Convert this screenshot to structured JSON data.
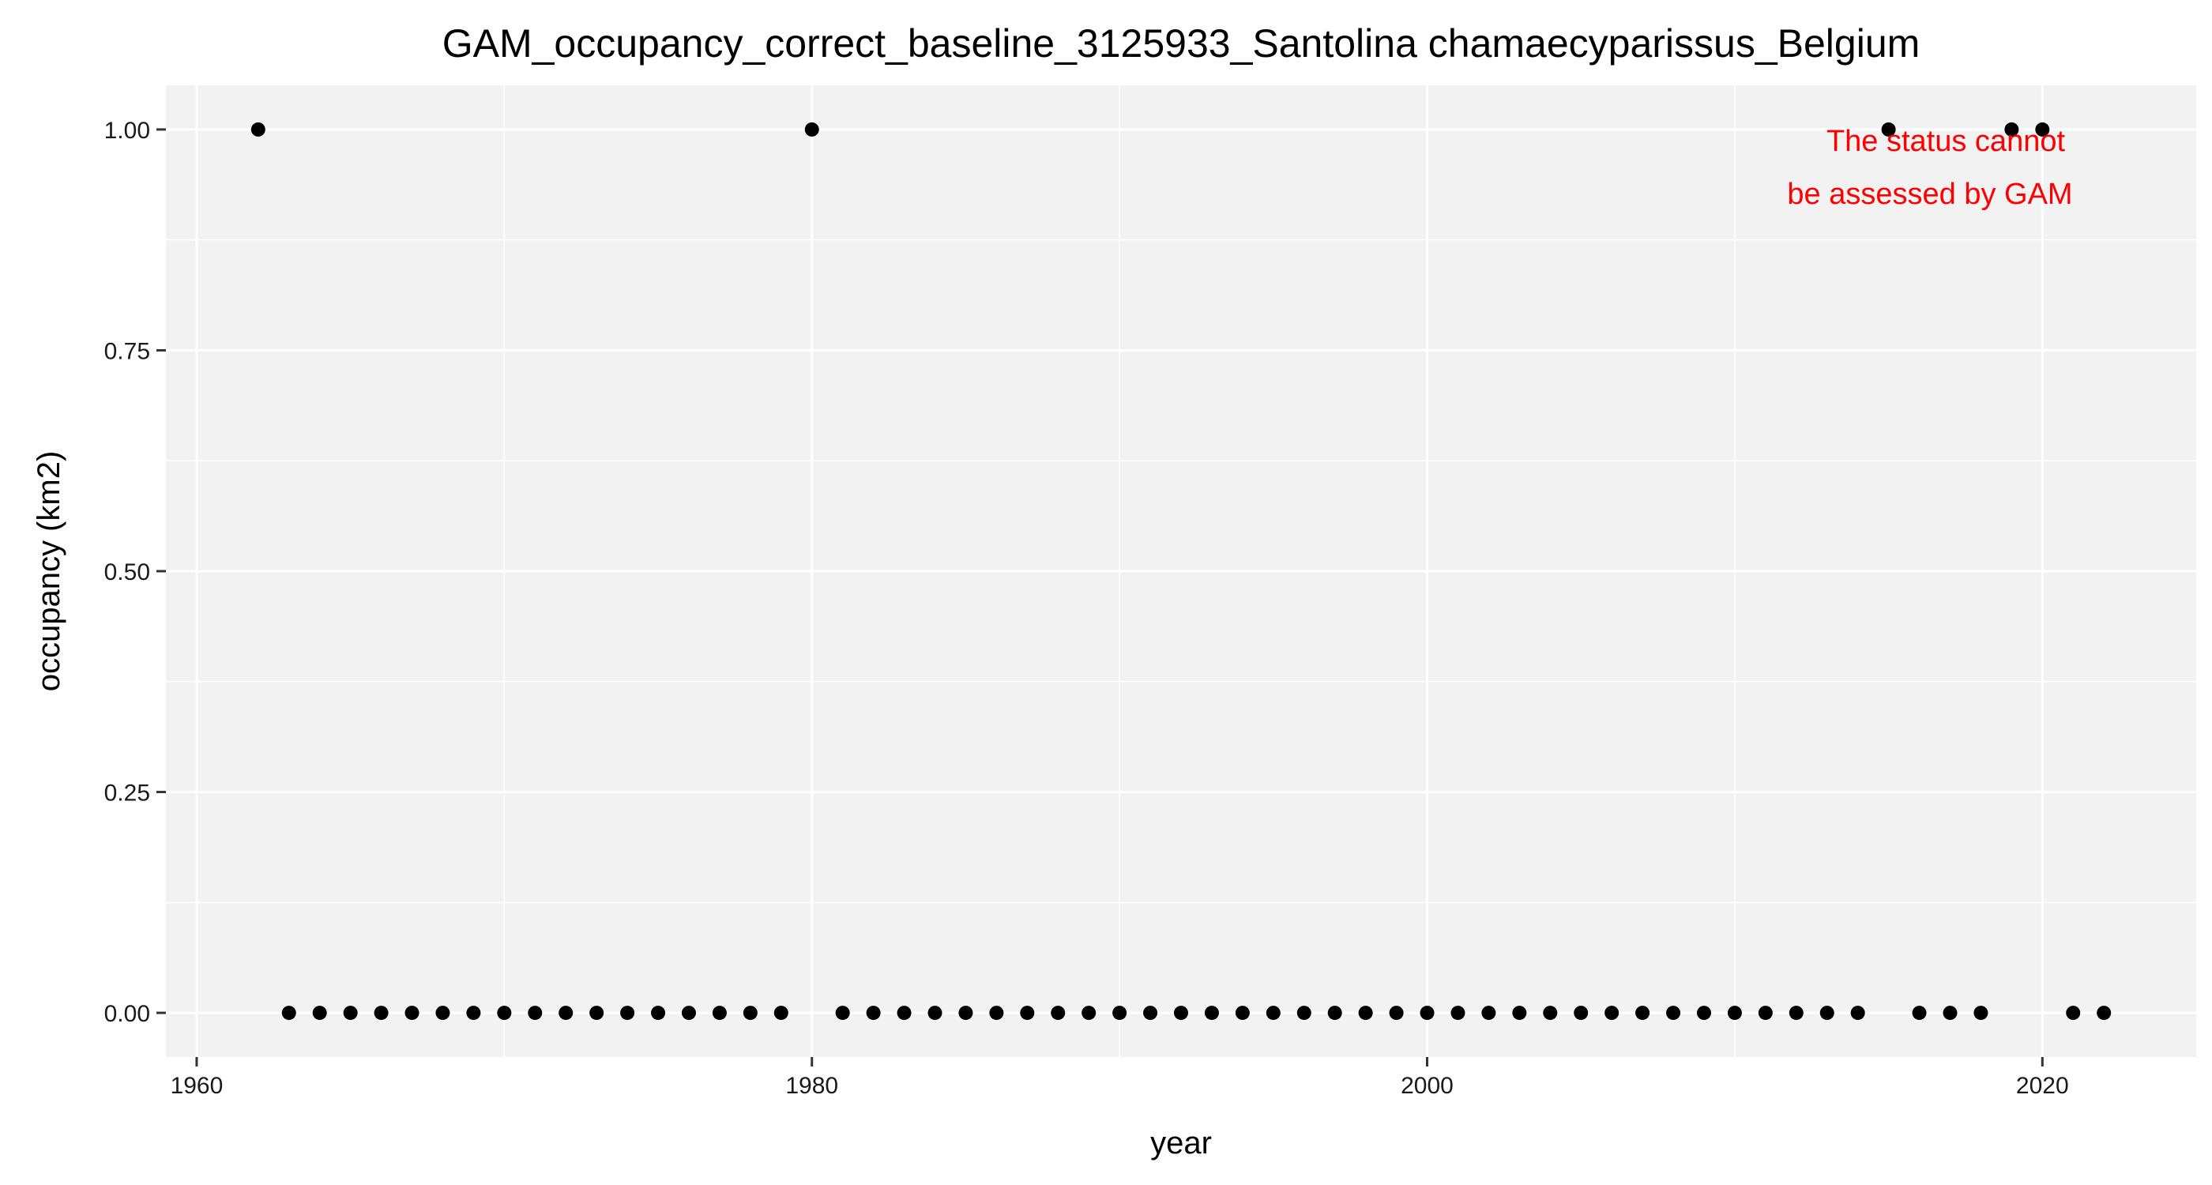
{
  "chart_data": {
    "type": "scatter",
    "title": "GAM_occupancy_correct_baseline_3125933_Santolina chamaecyparissus_Belgium",
    "xlabel": "year",
    "ylabel": "occupancy (km2)",
    "xlim": [
      1959,
      2025
    ],
    "ylim": [
      -0.05,
      1.05
    ],
    "x_ticks": [
      1960,
      1980,
      2000,
      2020
    ],
    "x_tick_labels": [
      "1960",
      "1980",
      "2000",
      "2020"
    ],
    "y_ticks": [
      0,
      0.25,
      0.5,
      0.75,
      1
    ],
    "y_tick_labels": [
      "0.00",
      "0.25",
      "0.50",
      "0.75",
      "1.00"
    ],
    "grid": true,
    "panel_background": "#f2f2f2",
    "grid_color": "#ffffff",
    "point_color": "#000000",
    "x": [
      1962,
      1963,
      1964,
      1965,
      1966,
      1967,
      1968,
      1969,
      1970,
      1971,
      1972,
      1973,
      1974,
      1975,
      1976,
      1977,
      1978,
      1979,
      1980,
      1981,
      1982,
      1983,
      1984,
      1985,
      1986,
      1987,
      1988,
      1989,
      1990,
      1991,
      1992,
      1993,
      1994,
      1995,
      1996,
      1997,
      1998,
      1999,
      2000,
      2001,
      2002,
      2003,
      2004,
      2005,
      2006,
      2007,
      2008,
      2009,
      2010,
      2011,
      2012,
      2013,
      2014,
      2015,
      2016,
      2017,
      2018,
      2019,
      2020,
      2021,
      2022
    ],
    "y": [
      1,
      0,
      0,
      0,
      0,
      0,
      0,
      0,
      0,
      0,
      0,
      0,
      0,
      0,
      0,
      0,
      0,
      0,
      1,
      0,
      0,
      0,
      0,
      0,
      0,
      0,
      0,
      0,
      0,
      0,
      0,
      0,
      0,
      0,
      0,
      0,
      0,
      0,
      0,
      0,
      0,
      0,
      0,
      0,
      0,
      0,
      0,
      0,
      0,
      0,
      0,
      0,
      0,
      1,
      0,
      0,
      0,
      1,
      1,
      0,
      0
    ],
    "annotation": {
      "lines": [
        "The status cannot",
        "be assessed by GAM"
      ],
      "color": "#ff0000"
    }
  }
}
